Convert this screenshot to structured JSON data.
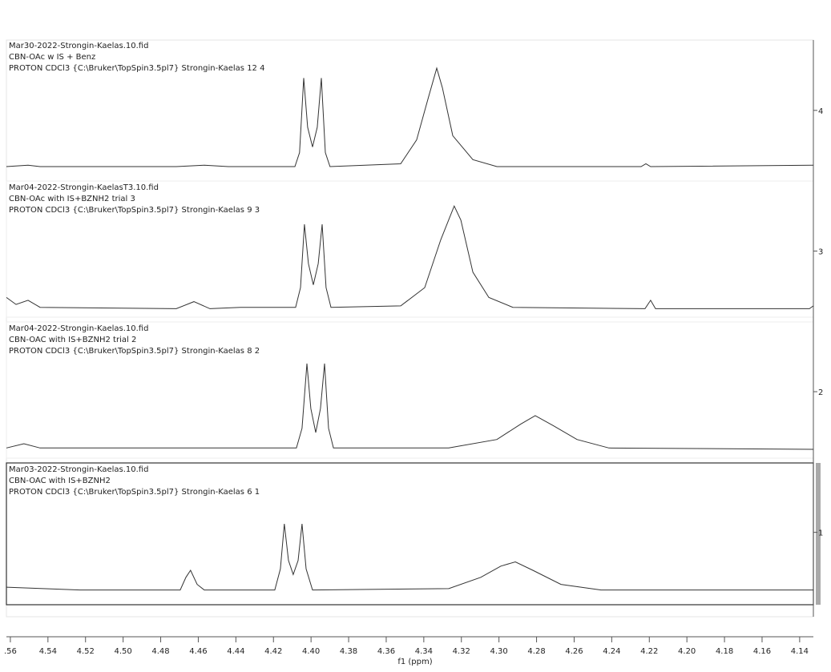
{
  "chart_data": {
    "type": "line",
    "x_label": "f1 (ppm)",
    "xlim": [
      4.5621,
      4.1327
    ],
    "ylim": [
      0.4,
      4.5
    ],
    "xticks": [
      {
        "value": 4.56,
        "label": ".56"
      },
      4.54,
      4.52,
      {
        "value": 4.5,
        "label": "4.50"
      },
      4.48,
      4.46,
      4.44,
      4.42,
      {
        "value": 4.4,
        "label": "4.40"
      },
      4.38,
      4.36,
      4.34,
      4.32,
      {
        "value": 4.3,
        "label": "4.30"
      },
      4.28,
      4.26,
      4.24,
      4.22,
      {
        "value": 4.2,
        "label": "4.20"
      },
      4.18,
      4.16,
      4.14
    ],
    "yticks": [
      1,
      2,
      3,
      4
    ],
    "color": "#333333",
    "series": [
      {
        "labels": [
          "Mar30-2022-Strongin-Kaelas.10.fid",
          "CBN-OAc w IS + Benz",
          "PROTON CDCl3 {C:\\Bruker\\TopSpin3.5pl7} Strongin-Kaelas 12 4"
        ],
        "x": [
          4.5621,
          4.5506,
          4.5442,
          4.4717,
          4.4568,
          4.444,
          4.4086,
          4.4061,
          4.4039,
          4.4018,
          4.3992,
          4.3967,
          4.3945,
          4.3924,
          4.3899,
          4.3523,
          4.3438,
          4.3374,
          4.3331,
          4.3301,
          4.3246,
          4.3139,
          4.3011,
          4.2244,
          4.2218,
          4.2193,
          4.1327
        ],
        "values": [
          3.6,
          3.61,
          3.6,
          3.6,
          3.61,
          3.6,
          3.6,
          3.7,
          4.23,
          3.88,
          3.74,
          3.88,
          4.23,
          3.7,
          3.6,
          3.62,
          3.79,
          4.1,
          4.3,
          4.16,
          3.82,
          3.65,
          3.6,
          3.6,
          3.62,
          3.6,
          3.61
        ]
      },
      {
        "labels": [
          "Mar04-2022-Strongin-KaelasT3.10.fid",
          "CBN-OAc with IS+BZNH2 trial 3",
          "PROTON CDCl3 {C:\\Bruker\\TopSpin3.5pl7} Strongin-Kaelas 9 3"
        ],
        "x": [
          4.5621,
          4.557,
          4.5506,
          4.5442,
          4.4717,
          4.4623,
          4.4538,
          4.4376,
          4.4082,
          4.4056,
          4.4035,
          4.4014,
          4.3988,
          4.3962,
          4.3941,
          4.392,
          4.3894,
          4.3523,
          4.3395,
          4.331,
          4.3238,
          4.3203,
          4.3139,
          4.3054,
          4.2926,
          4.2223,
          4.2193,
          4.2167,
          4.1348,
          4.1327
        ],
        "values": [
          2.67,
          2.62,
          2.65,
          2.6,
          2.59,
          2.64,
          2.59,
          2.6,
          2.6,
          2.74,
          3.19,
          2.91,
          2.76,
          2.91,
          3.19,
          2.74,
          2.6,
          2.61,
          2.74,
          3.08,
          3.32,
          3.22,
          2.85,
          2.67,
          2.6,
          2.59,
          2.65,
          2.59,
          2.59,
          2.61
        ]
      },
      {
        "labels": [
          "Mar04-2022-Strongin-Kaelas.10.fid",
          "CBN-OAC with IS+BZNH2 trial 2",
          "PROTON CDCl3 {C:\\Bruker\\TopSpin3.5pl7} Strongin-Kaelas 8 2"
        ],
        "x": [
          4.5621,
          4.5528,
          4.5442,
          4.4078,
          4.4048,
          4.4022,
          4.4001,
          4.3975,
          4.395,
          4.3928,
          4.3907,
          4.3881,
          4.3267,
          4.3011,
          4.2884,
          4.2807,
          4.2713,
          4.2585,
          4.2415,
          4.1327
        ],
        "values": [
          1.6,
          1.63,
          1.6,
          1.6,
          1.74,
          2.2,
          1.88,
          1.71,
          1.88,
          2.2,
          1.74,
          1.6,
          1.6,
          1.66,
          1.77,
          1.83,
          1.76,
          1.66,
          1.6,
          1.59
        ]
      },
      {
        "labels": [
          "Mar03-2022-Strongin-Kaelas.10.fid",
          "CBN-OAC with IS+BZNH2",
          "PROTON CDCl3 {C:\\Bruker\\TopSpin3.5pl7} Strongin-Kaelas 6 1"
        ],
        "x": [
          4.5621,
          4.5229,
          4.4696,
          4.4666,
          4.4641,
          4.4606,
          4.4568,
          4.4193,
          4.4163,
          4.4142,
          4.412,
          4.4095,
          4.4069,
          4.4048,
          4.4026,
          4.3992,
          4.3267,
          4.3097,
          4.299,
          4.2913,
          4.282,
          4.267,
          4.2457,
          4.1327
        ],
        "values": [
          0.61,
          0.59,
          0.59,
          0.68,
          0.73,
          0.63,
          0.59,
          0.59,
          0.74,
          1.06,
          0.8,
          0.7,
          0.8,
          1.06,
          0.74,
          0.59,
          0.6,
          0.68,
          0.76,
          0.79,
          0.73,
          0.63,
          0.59,
          0.59
        ]
      }
    ]
  }
}
